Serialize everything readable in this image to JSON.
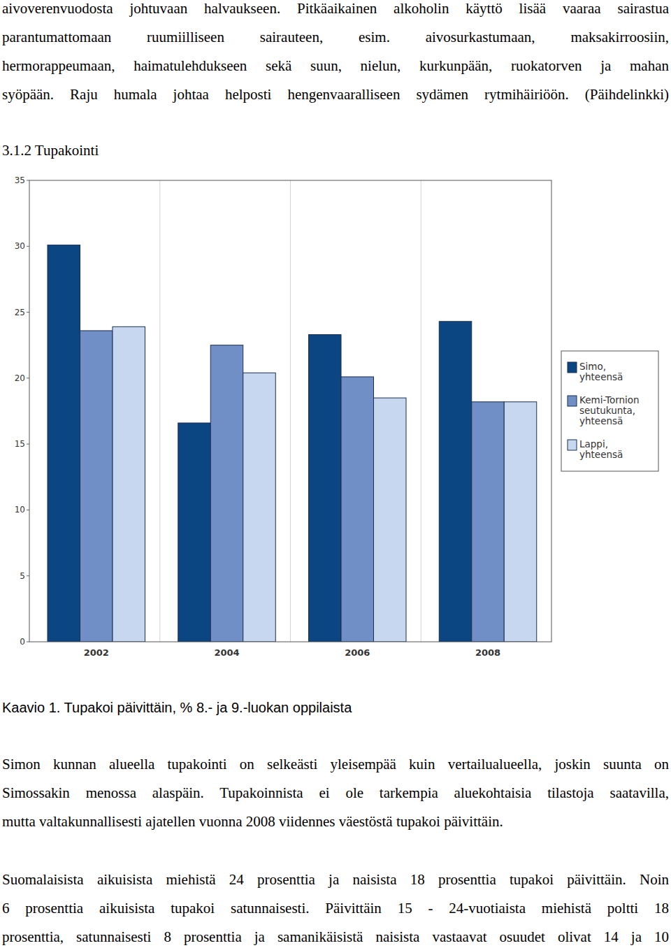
{
  "paragraphs_top": [
    {
      "lines": [
        "aivoverenvuodosta johtuvaan halvaukseen. Pitkäaikainen alkoholin käyttö lisää vaaraa sairastua",
        "parantumattomaan ruumiilliseen sairauteen, esim. aivosurkastumaan, maksakirroosiin,",
        "hermorappeumaan, haimatulehdukseen sekä suun, nielun, kurkunpään, ruokatorven ja mahan",
        "syöpään. Raju humala johtaa helposti hengenvaaralliseen sydämen rytmihäiriöön. (Päihdelinkki)"
      ]
    }
  ],
  "heading": "3.1.2 Tupakointi",
  "chart_data": {
    "type": "bar",
    "title": "Kaavio 1. Tupakoi päivittäin, % 8.- ja 9.-luokan oppilaista",
    "categories": [
      "2002",
      "2004",
      "2006",
      "2008"
    ],
    "series": [
      {
        "name": "Simo, yhteensä",
        "color": "#0b4682",
        "values": [
          30.1,
          16.6,
          23.3,
          24.3
        ]
      },
      {
        "name": "Kemi-Tornion seutukunta, yhteensä",
        "color": "#6f8fc6",
        "values": [
          23.6,
          22.5,
          20.1,
          18.2
        ]
      },
      {
        "name": "Lappi, yhteensä",
        "color": "#c6d7ef",
        "values": [
          23.9,
          20.4,
          18.5,
          18.2
        ]
      }
    ],
    "ylim": [
      0,
      35
    ],
    "yticks": [
      0,
      5,
      10,
      15,
      20,
      25,
      30,
      35
    ],
    "grid": true,
    "legend": "right"
  },
  "paragraphs_bottom": [
    {
      "lines": [
        "Simon kunnan alueella tupakointi on selkeästi yleisempää kuin vertailualueella, joskin suunta on",
        "Simossakin menossa alaspäin. Tupakoinnista ei ole tarkempia aluekohtaisia tilastoja saatavilla,",
        "mutta valtakunnallisesti ajatellen vuonna 2008 viidennes väestöstä tupakoi päivittäin."
      ]
    },
    {
      "lines": [
        "Suomalaisista aikuisista miehistä 24 prosenttia ja naisista 18 prosenttia tupakoi päivittäin. Noin",
        "6 prosenttia aikuisista tupakoi satunnaisesti. Päivittäin 15 - 24-vuotiaista miehistä poltti 18",
        "prosenttia, satunnaisesti 8 prosenttia ja samanikäisistä naisista vastaavat osuudet olivat 14 ja 10"
      ]
    }
  ]
}
